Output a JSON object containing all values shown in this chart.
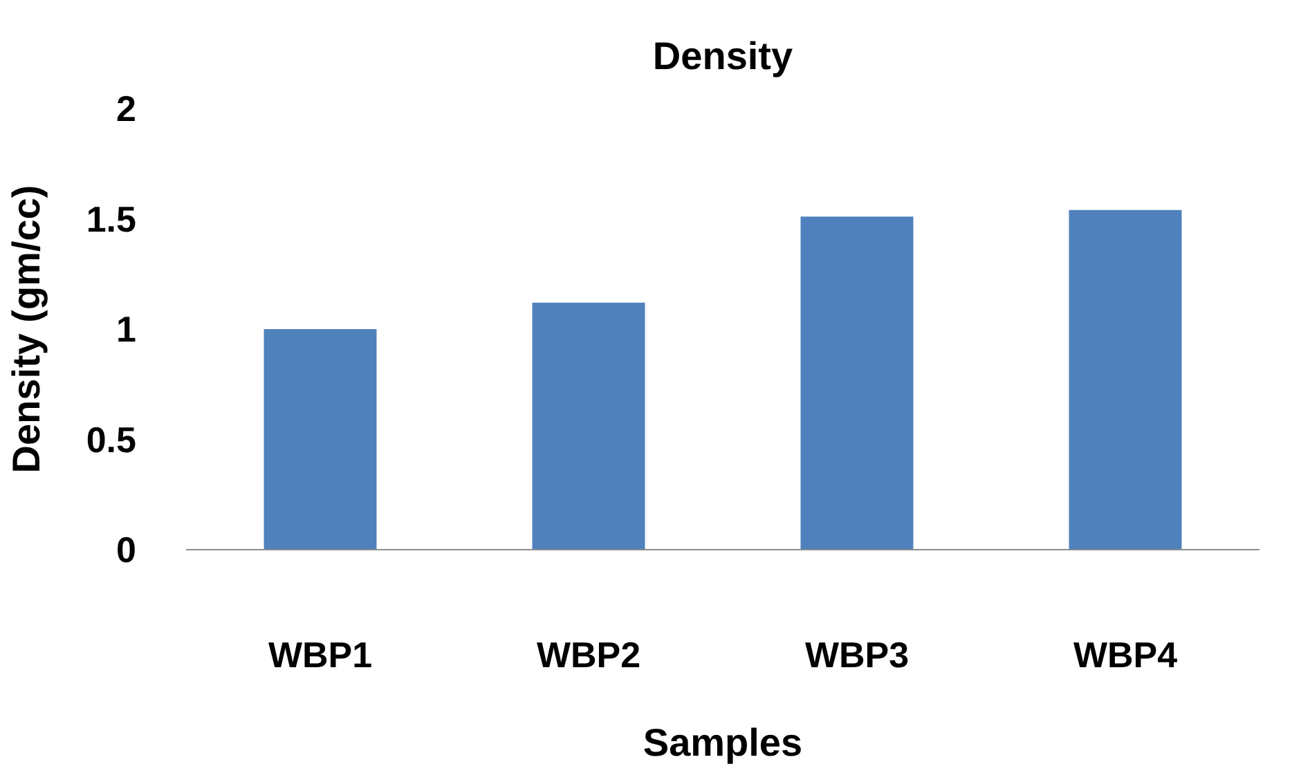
{
  "chart_data": {
    "type": "bar",
    "title": "Density",
    "xlabel": "Samples",
    "ylabel": "Density (gm/cc)",
    "categories": [
      "WBP1",
      "WBP2",
      "WBP3",
      "WBP4"
    ],
    "values": [
      1.0,
      1.12,
      1.51,
      1.54
    ],
    "color": "#4f81bd",
    "ylim": [
      0,
      2
    ],
    "yticks": [
      0,
      0.5,
      1,
      1.5,
      2
    ],
    "grid": false
  }
}
